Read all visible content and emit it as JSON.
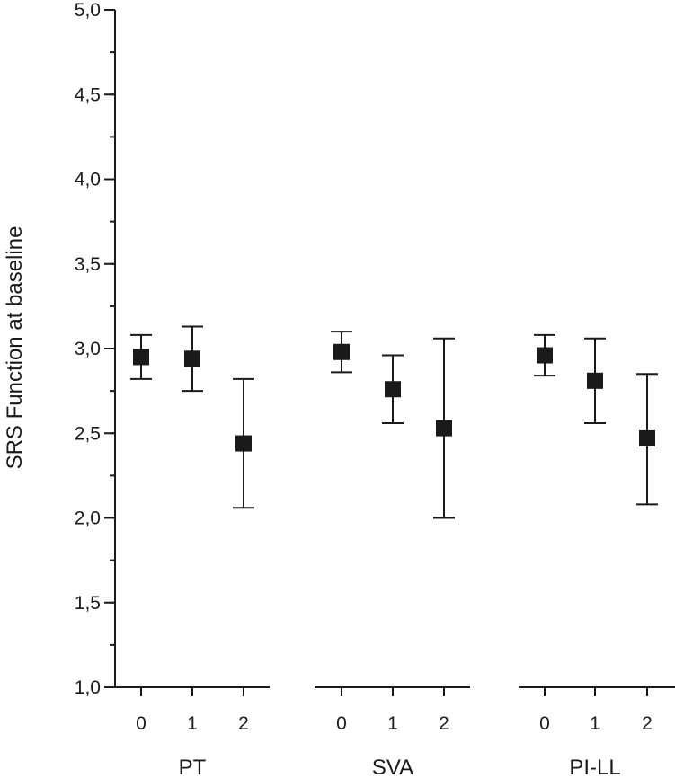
{
  "chart_data": {
    "type": "scatter",
    "ylabel": "SRS Function at baseline",
    "ylim": [
      1.0,
      5.0
    ],
    "y_ticks": [
      "1,0",
      "1,5",
      "2,0",
      "2,5",
      "3,0",
      "3,5",
      "4,0",
      "4,5",
      "5,0"
    ],
    "y_minor_step": 0.25,
    "error_bars": true,
    "marker": "square",
    "color": "#1a1a1a",
    "groups": [
      {
        "name": "PT",
        "categories": [
          "0",
          "1",
          "2"
        ],
        "values": [
          2.95,
          2.94,
          2.44
        ],
        "lower": [
          2.82,
          2.75,
          2.06
        ],
        "upper": [
          3.08,
          3.13,
          2.82
        ]
      },
      {
        "name": "SVA",
        "categories": [
          "0",
          "1",
          "2"
        ],
        "values": [
          2.98,
          2.76,
          2.53
        ],
        "lower": [
          2.86,
          2.56,
          2.0
        ],
        "upper": [
          3.1,
          2.96,
          3.06
        ]
      },
      {
        "name": "PI-LL",
        "categories": [
          "0",
          "1",
          "2"
        ],
        "values": [
          2.96,
          2.81,
          2.47
        ],
        "lower": [
          2.84,
          2.56,
          2.08
        ],
        "upper": [
          3.08,
          3.06,
          2.85
        ]
      }
    ]
  }
}
